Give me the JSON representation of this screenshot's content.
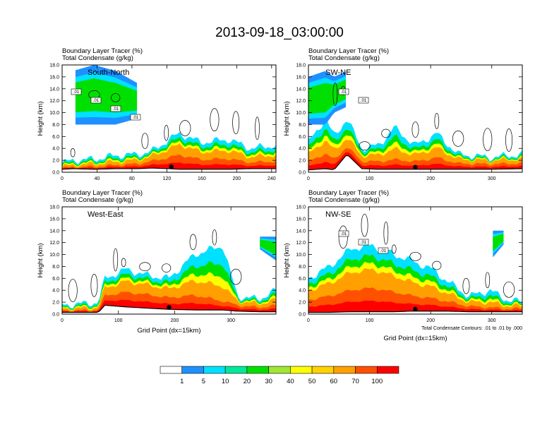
{
  "title": "2013-09-18_03:00:00",
  "chart_data": [
    {
      "type": "heatmap",
      "subtitle_lines": [
        "Boundary Layer Tracer   (%)",
        "Total Condensate   (g/kg)"
      ],
      "label": "South-North",
      "ylabel": "Height (km)",
      "xlabel": "",
      "xlim": [
        0,
        245
      ],
      "ylim": [
        0,
        18
      ],
      "xticks": [
        0,
        40,
        80,
        120,
        160,
        200,
        240
      ],
      "yticks": [
        "0.0",
        "2.0",
        "4.0",
        "6.0",
        "8.0",
        "10.0",
        "12.0",
        "14.0",
        "16.0",
        "18.0"
      ],
      "contour_labels": [
        ".01",
        ".01",
        ".01",
        ".01"
      ],
      "point_marker_x": 125,
      "footnote": ""
    },
    {
      "type": "heatmap",
      "subtitle_lines": [
        "Boundary Layer Tracer   (%)",
        "Total Condensate   (g/kg)"
      ],
      "label": "SW-NE",
      "ylabel": "Height (km)",
      "xlabel": "",
      "xlim": [
        0,
        350
      ],
      "ylim": [
        0,
        18
      ],
      "xticks": [
        0,
        100,
        200,
        300
      ],
      "yticks": [
        "0.0",
        "2.0",
        "4.0",
        "6.0",
        "8.0",
        "10.0",
        "12.0",
        "14.0",
        "16.0",
        "18.0"
      ],
      "contour_labels": [
        ".01",
        ".01"
      ],
      "point_marker_x": 175,
      "footnote": ""
    },
    {
      "type": "heatmap",
      "subtitle_lines": [
        "Boundary Layer Tracer   (%)",
        "Total Condensate   (g/kg)"
      ],
      "label": "West-East",
      "ylabel": "Height (km)",
      "xlabel": "Grid Point (dx=15km)",
      "xlim": [
        0,
        380
      ],
      "ylim": [
        0,
        18
      ],
      "xticks": [
        0,
        100,
        200,
        300
      ],
      "yticks": [
        "0.0",
        "2.0",
        "4.0",
        "6.0",
        "8.0",
        "10.0",
        "12.0",
        "14.0",
        "16.0",
        "18.0"
      ],
      "contour_labels": [],
      "point_marker_x": 190,
      "footnote": ""
    },
    {
      "type": "heatmap",
      "subtitle_lines": [
        "Boundary Layer Tracer   (%)",
        "Total Condensate   (g/kg)"
      ],
      "label": "NW-SE",
      "ylabel": "Height (km)",
      "xlabel": "Grid Point (dx=15km)",
      "xlim": [
        0,
        350
      ],
      "ylim": [
        0,
        18
      ],
      "xticks": [
        0,
        100,
        200,
        300
      ],
      "yticks": [
        "0.0",
        "2.0",
        "4.0",
        "6.0",
        "8.0",
        "10.0",
        "12.0",
        "14.0",
        "16.0",
        "18.0"
      ],
      "contour_labels": [
        ".01",
        ".01",
        ".01"
      ],
      "point_marker_x": 175,
      "footnote": "Total Condensate Contours: .01 to .01 by .000"
    }
  ],
  "colorbar": {
    "levels": [
      "1",
      "5",
      "10",
      "20",
      "30",
      "40",
      "50",
      "60",
      "70",
      "100"
    ],
    "colors": [
      "#ffffff",
      "#1e90ff",
      "#00e0ff",
      "#00e89a",
      "#00e000",
      "#a0e632",
      "#ffff00",
      "#ffd200",
      "#ffa000",
      "#ff5000",
      "#ff0000"
    ]
  }
}
